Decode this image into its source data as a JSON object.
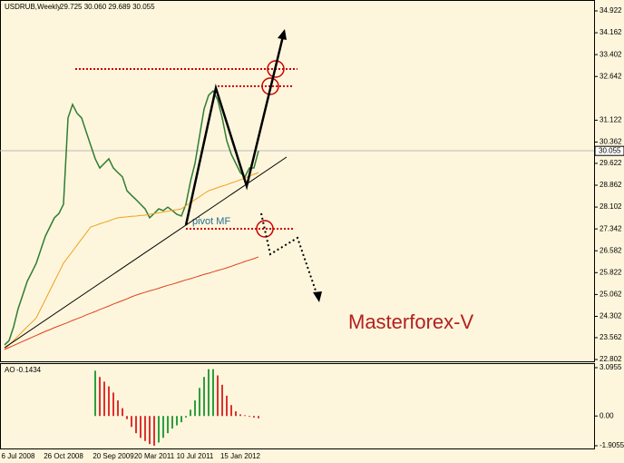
{
  "chart_data": {
    "type": "line",
    "symbol": "USDRUB,Weekly",
    "quote": "29.725 30.060 29.689 30.055",
    "annotations": [
      "pivot MF",
      "Masterforex-V"
    ],
    "categories": [
      null,
      null,
      null,
      "6 Jul 2008",
      null,
      null,
      null,
      null,
      null,
      null,
      null,
      null,
      null,
      "26 Oct 2008",
      null,
      null,
      null,
      null,
      null,
      null,
      null,
      null,
      null,
      null,
      "20 Sep 2009",
      null,
      null,
      null,
      null,
      null,
      null,
      null,
      null,
      "20 Mar 2011",
      null,
      null,
      null,
      null,
      null,
      null,
      null,
      null,
      "10 Jul 2011",
      null,
      null,
      null,
      null,
      null,
      null,
      null,
      null,
      null,
      "15 Jan 2012",
      null,
      null,
      null,
      null
    ],
    "series": [
      {
        "color": "#2f7d32",
        "values": [
          23.31,
          23.46,
          23.94,
          24.57,
          25.04,
          25.52,
          25.83,
          26.15,
          26.62,
          27.09,
          27.41,
          27.73,
          27.88,
          28.2,
          31.2,
          31.67,
          31.36,
          31.2,
          30.72,
          30.25,
          29.78,
          29.46,
          29.62,
          29.78,
          29.46,
          29.3,
          29.15,
          28.67,
          28.51,
          28.36,
          28.2,
          28.04,
          27.73,
          27.88,
          28.04,
          27.98,
          28.1,
          27.98,
          27.85,
          27.79,
          28.2,
          28.99,
          29.62,
          30.57,
          31.51,
          31.99,
          32.14,
          31.83,
          31.2,
          30.41,
          29.94,
          29.62,
          29.3,
          29.15,
          29.46,
          29.46,
          30.055
        ]
      },
      {
        "color": "#f0a020",
        "values": [
          23.15,
          23.31,
          23.46,
          23.62,
          23.78,
          23.94,
          24.09,
          24.25,
          24.57,
          24.88,
          25.2,
          25.52,
          25.83,
          26.15,
          26.36,
          26.57,
          26.78,
          26.99,
          27.2,
          27.41,
          27.46,
          27.52,
          27.57,
          27.62,
          27.68,
          27.73,
          27.75,
          27.76,
          27.78,
          27.79,
          27.81,
          27.82,
          27.85,
          27.88,
          27.9,
          27.93,
          27.96,
          27.99,
          28.01,
          28.04,
          28.15,
          28.25,
          28.36,
          28.46,
          28.57,
          28.67,
          28.72,
          28.78,
          28.83,
          28.88,
          28.94,
          28.99,
          29.05,
          29.11,
          29.18,
          29.24,
          29.3
        ]
      },
      {
        "color": "#e04020",
        "values": [
          23.15,
          23.22,
          23.29,
          23.36,
          23.43,
          23.5,
          23.57,
          23.64,
          23.71,
          23.78,
          23.84,
          23.91,
          23.97,
          24.03,
          24.09,
          24.16,
          24.22,
          24.28,
          24.35,
          24.41,
          24.47,
          24.54,
          24.6,
          24.66,
          24.73,
          24.79,
          24.85,
          24.91,
          24.98,
          25.04,
          25.09,
          25.14,
          25.19,
          25.23,
          25.28,
          25.33,
          25.38,
          25.42,
          25.47,
          25.52,
          25.57,
          25.61,
          25.66,
          25.71,
          25.76,
          25.8,
          25.85,
          25.9,
          25.94,
          25.99,
          26.04,
          26.1,
          26.15,
          26.21,
          26.26,
          26.31,
          26.37
        ]
      }
    ],
    "ylim": [
      22.802,
      34.922
    ],
    "yticks": [
      34.922,
      34.162,
      33.402,
      32.642,
      31.122,
      30.362,
      29.622,
      28.862,
      28.102,
      27.342,
      26.582,
      25.822,
      25.062,
      24.302,
      23.562,
      22.802
    ],
    "ao": {
      "name": "AO",
      "up_color": "#2e9e3e",
      "down_color": "#e03030",
      "values": [
        null,
        null,
        null,
        null,
        null,
        null,
        null,
        null,
        null,
        null,
        null,
        null,
        null,
        null,
        null,
        null,
        null,
        null,
        null,
        null,
        2.9,
        2.5,
        2.2,
        1.9,
        1.5,
        1.0,
        0.5,
        -0.2,
        -0.7,
        -1.1,
        -1.4,
        -1.6,
        -1.8,
        -1.9,
        -1.7,
        -1.4,
        -1.1,
        -0.8,
        -0.6,
        -0.4,
        -0.1,
        0.4,
        1.0,
        1.8,
        2.5,
        3.0,
        3.0,
        2.6,
        2.0,
        1.3,
        0.7,
        0.3,
        0.1,
        0.05,
        -0.05,
        -0.1,
        -0.1434
      ],
      "ylim": [
        -1.9055,
        3.0955
      ],
      "yticks": [
        3.0955,
        {
          "value": 0,
          "label": "0.00"
        },
        -1.9055
      ]
    }
  }
}
